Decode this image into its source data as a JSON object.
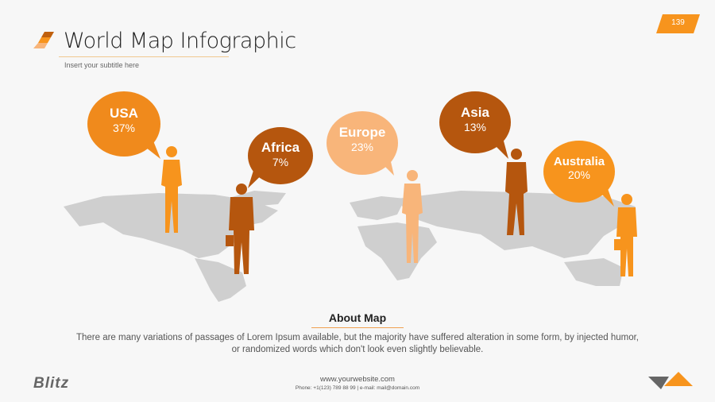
{
  "header": {
    "title": "World Map Infographic",
    "subtitle": "Insert your subtitle here",
    "page_number": "139"
  },
  "colors": {
    "accent": "#f7941d",
    "dark": "#b5560e",
    "light": "#f8b57a",
    "map": "#cfcfcf"
  },
  "regions": [
    {
      "name": "USA",
      "value": "37%",
      "color": "#f08a1c"
    },
    {
      "name": "Africa",
      "value": "7%",
      "color": "#b5560e"
    },
    {
      "name": "Europe",
      "value": "23%",
      "color": "#f8b57a"
    },
    {
      "name": "Asia",
      "value": "13%",
      "color": "#b5560e"
    },
    {
      "name": "Australia",
      "value": "20%",
      "color": "#f7941d"
    }
  ],
  "about": {
    "title": "About Map",
    "text": "There are many variations of passages of Lorem Ipsum available, but the majority have suffered alteration in some form, by injected humor, or randomized words which don't look even slightly believable."
  },
  "footer": {
    "logo": "Blitz",
    "website": "www.yourwebsite.com",
    "contact": "Phone: +1(123) 789 88 99 | e-mail: mail@domain.com"
  }
}
